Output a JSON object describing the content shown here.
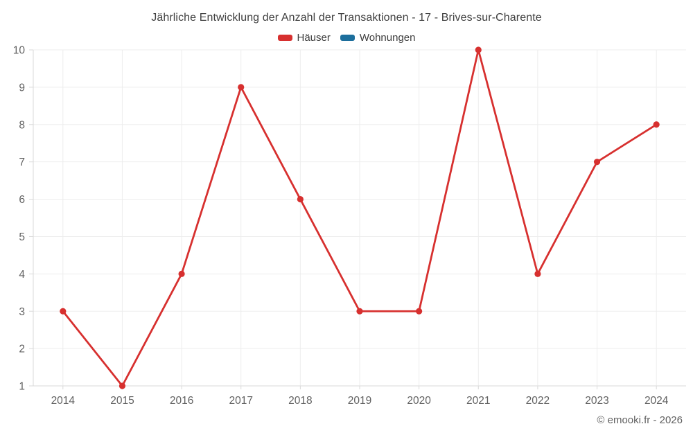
{
  "title": "Jährliche Entwicklung der Anzahl der Transaktionen - 17 - Brives-sur-Charente",
  "footer": {
    "text": "© emooki.fr - 2026"
  },
  "colors": {
    "background": "#ffffff",
    "grid": "#ededed",
    "axis": "#d9d9d9",
    "tick_text": "#616161",
    "title_text": "#404040",
    "legend_text": "#3c3c3c",
    "footer_text": "#5f5f5f",
    "haeuser_red": "#d7302f",
    "wohnungen_blue": "#1c6e9c"
  },
  "chart_data": {
    "type": "line",
    "title": "Jährliche Entwicklung der Anzahl der Transaktionen - 17 - Brives-sur-Charente",
    "categories": [
      "2014",
      "2015",
      "2016",
      "2017",
      "2018",
      "2019",
      "2020",
      "2021",
      "2022",
      "2023",
      "2024"
    ],
    "series": [
      {
        "name": "Häuser",
        "color": "#d7302f",
        "values": [
          3,
          1,
          4,
          9,
          6,
          3,
          3,
          10,
          4,
          7,
          8
        ]
      },
      {
        "name": "Wohnungen",
        "color": "#1c6e9c",
        "values": []
      }
    ],
    "xlabel": "",
    "ylabel": "",
    "ylim": [
      1,
      10
    ],
    "yticks": [
      1,
      2,
      3,
      4,
      5,
      6,
      7,
      8,
      9,
      10
    ],
    "grid": true,
    "legend_position": "top",
    "marker_radius": 4.6,
    "line_width": 2.8
  }
}
